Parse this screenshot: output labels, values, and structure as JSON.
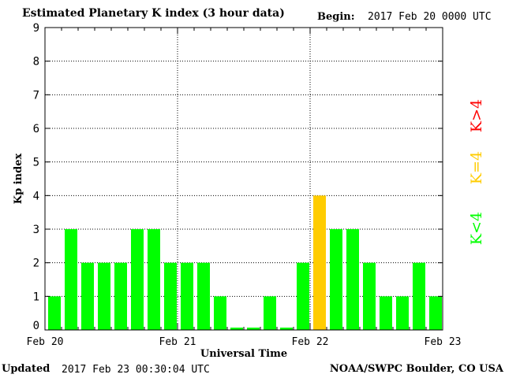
{
  "header": {
    "title": "Estimated Planetary K index (3 hour data)",
    "begin_label": "Begin:",
    "begin_value": "2017 Feb 20 0000 UTC"
  },
  "footer": {
    "updated_label": "Updated",
    "updated_value": "2017 Feb 23 00:30:04 UTC",
    "credit": "NOAA/SWPC Boulder, CO USA"
  },
  "legend": {
    "items": [
      {
        "label": "K<4",
        "color": "#00ff00"
      },
      {
        "label": "K=4",
        "color": "#ffcc00"
      },
      {
        "label": "K>4",
        "color": "#ff0000"
      }
    ]
  },
  "chart_data": {
    "type": "bar",
    "title": "Estimated Planetary K index (3 hour data)",
    "xlabel": "Universal Time",
    "ylabel": "Kp index",
    "ylim": [
      0,
      9
    ],
    "yticks": [
      0,
      1,
      2,
      3,
      4,
      5,
      6,
      7,
      8,
      9
    ],
    "xtick_labels": [
      "Feb 20",
      "Feb 21",
      "Feb 22",
      "Feb 23"
    ],
    "grid": true,
    "colors": {
      "low": "#00ff00",
      "equal": "#ffcc00",
      "high": "#ff0000"
    },
    "values": [
      1,
      3,
      2,
      2,
      2,
      3,
      3,
      2,
      2,
      2,
      1,
      0.07,
      0.07,
      1,
      0.07,
      2,
      4,
      3,
      3,
      2,
      1,
      1,
      2,
      1
    ]
  }
}
